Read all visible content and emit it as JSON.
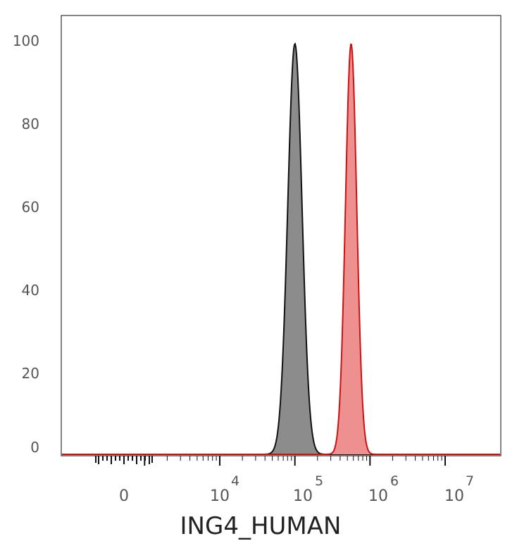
{
  "chart_data": {
    "type": "area",
    "title": "",
    "xlabel": "ING4_HUMAN",
    "ylabel": "",
    "x_scale": "biexponential",
    "y_ticks": [
      "0",
      "20",
      "40",
      "60",
      "80",
      "100"
    ],
    "ylim": [
      0,
      105
    ],
    "x_ticks": [
      {
        "label": "0",
        "base": "0",
        "exp": ""
      },
      {
        "label": "10^4",
        "base": "10",
        "exp": "4"
      },
      {
        "label": "10^5",
        "base": "10",
        "exp": "5"
      },
      {
        "label": "10^6",
        "base": "10",
        "exp": "6"
      },
      {
        "label": "10^7",
        "base": "10",
        "exp": "7"
      }
    ],
    "series": [
      {
        "color": "#8c8c8c",
        "stroke": "#111111",
        "peak_x": 100000,
        "peak_y": 100
      },
      {
        "color": "#ee9090",
        "stroke": "#cc1111",
        "peak_x": 560000,
        "peak_y": 100
      }
    ],
    "grid": false,
    "legend": "none"
  }
}
